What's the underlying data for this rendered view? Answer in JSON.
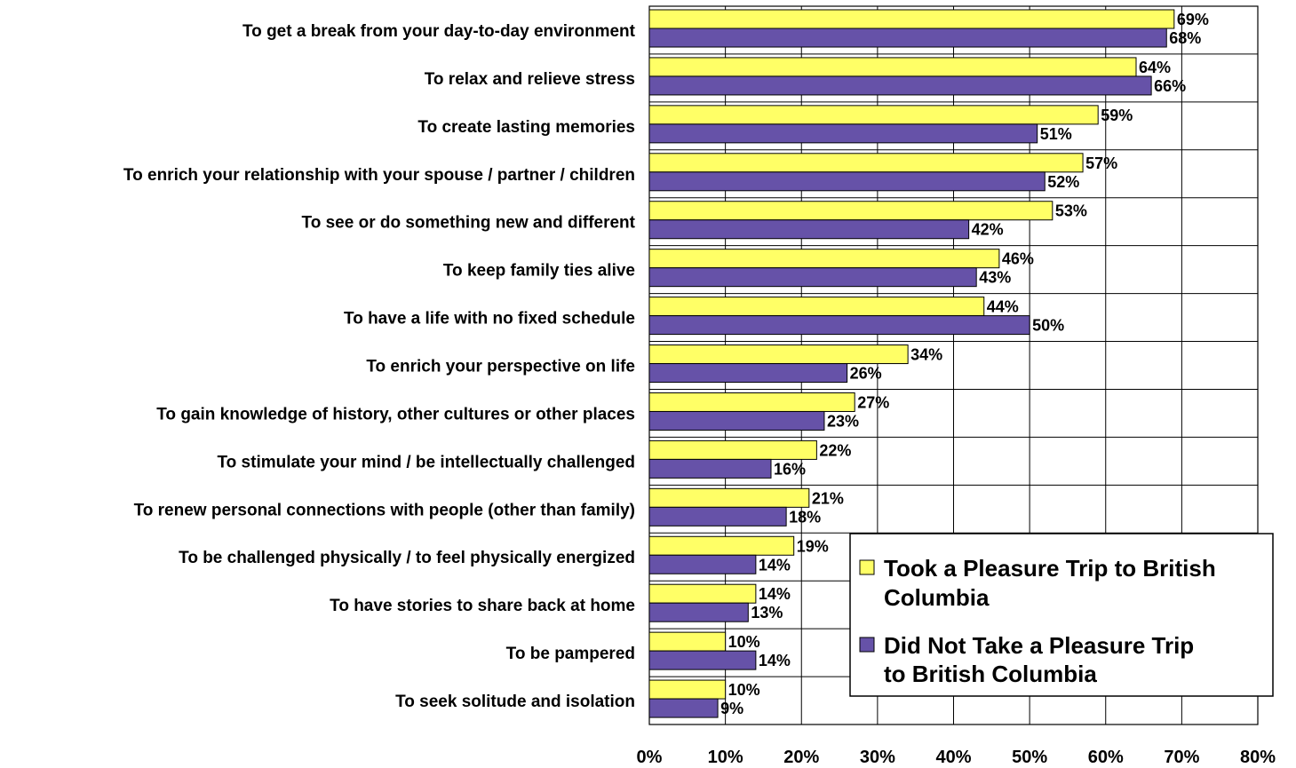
{
  "chart_data": {
    "type": "bar",
    "orientation": "horizontal",
    "title": "",
    "xlabel": "",
    "ylabel": "",
    "xlim": [
      0,
      80
    ],
    "x_ticks": [
      "0%",
      "10%",
      "20%",
      "30%",
      "40%",
      "50%",
      "60%",
      "70%",
      "80%"
    ],
    "grid": true,
    "legend_position": "lower-right",
    "categories": [
      "To get a break from your day-to-day environment",
      "To relax and relieve stress",
      "To create lasting memories",
      "To enrich your relationship with your spouse / partner / children",
      "To see or do something new and different",
      "To keep family ties alive",
      "To have a life with no fixed schedule",
      "To enrich your perspective on life",
      "To gain knowledge of history, other cultures or other places",
      "To stimulate your mind / be intellectually challenged",
      "To renew personal connections with people (other than family)",
      "To be challenged physically / to feel physically energized",
      "To have stories to share back at home",
      "To be pampered",
      "To seek solitude and isolation"
    ],
    "series": [
      {
        "name": "Took a Pleasure Trip to British Columbia",
        "color": "#ffff66",
        "values": [
          69,
          64,
          59,
          57,
          53,
          46,
          44,
          34,
          27,
          22,
          21,
          19,
          14,
          10,
          10
        ],
        "labels": [
          "69%",
          "64%",
          "59%",
          "57%",
          "53%",
          "46%",
          "44%",
          "34%",
          "27%",
          "22%",
          "21%",
          "19%",
          "14%",
          "10%",
          "10%"
        ]
      },
      {
        "name": "Did Not Take a Pleasure Trip to British Columbia",
        "color": "#6652a8",
        "values": [
          68,
          66,
          51,
          52,
          42,
          43,
          50,
          26,
          23,
          16,
          18,
          14,
          13,
          14,
          9
        ],
        "labels": [
          "68%",
          "66%",
          "51%",
          "52%",
          "42%",
          "43%",
          "50%",
          "26%",
          "23%",
          "16%",
          "18%",
          "14%",
          "13%",
          "14%",
          "9%"
        ]
      }
    ],
    "legend": {
      "entry1_line1": "Took a Pleasure Trip to British",
      "entry1_line2": "Columbia",
      "entry2_line1": "Did Not Take a Pleasure Trip",
      "entry2_line2": "to British Columbia"
    }
  }
}
